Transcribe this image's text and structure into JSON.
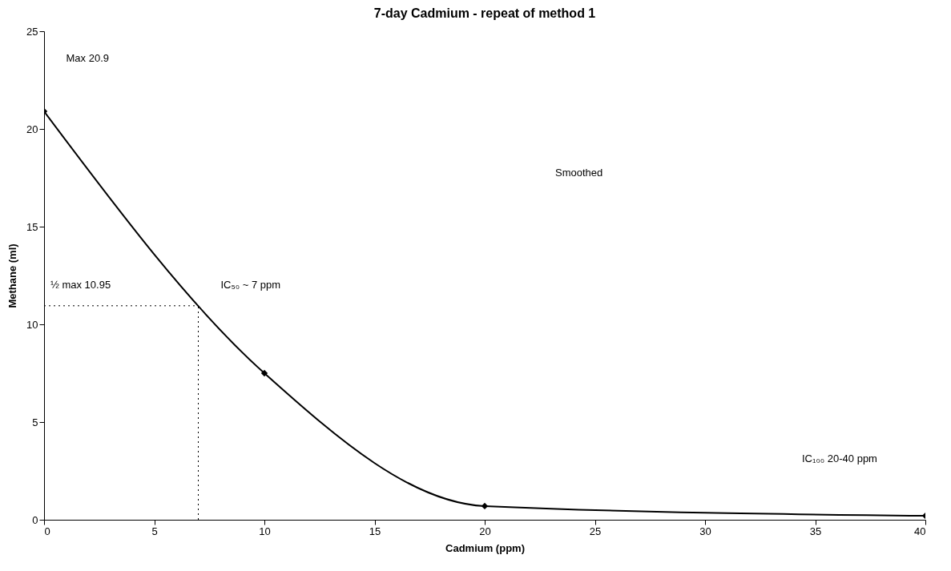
{
  "chart_data": {
    "type": "line",
    "title": "7-day Cadmium - repeat of method 1",
    "xlabel": "Cadmium (ppm)",
    "ylabel": "Methane (ml)",
    "x": [
      0,
      10,
      20,
      40
    ],
    "series": [
      {
        "color": "#000000",
        "values": [
          20.9,
          7.5,
          0.7,
          0.2
        ]
      }
    ],
    "xlim": [
      0,
      40
    ],
    "xticks": [
      0,
      5,
      10,
      15,
      20,
      25,
      30,
      35,
      40
    ],
    "ylim": [
      0,
      25
    ],
    "yticks": [
      0,
      5,
      10,
      15,
      20,
      25
    ],
    "grid": false,
    "marker": "diamond",
    "line_style": "solid",
    "ref_lines": [
      {
        "axis": "y",
        "value": 10.95,
        "line_style": "dotted",
        "color": "#000000"
      },
      {
        "axis": "x",
        "value": 7,
        "line_style": "dotted",
        "color": "#000000"
      }
    ],
    "annotations": [
      "Max 20.9",
      {
        "text": "½ max 10.95",
        "y": 10.95
      },
      {
        "text": "IC₅₀ ~ 7 ppm",
        "x": 7,
        "y": 10.95
      },
      "Smoothed",
      "IC₁₀₀  20-40 ppm"
    ]
  }
}
